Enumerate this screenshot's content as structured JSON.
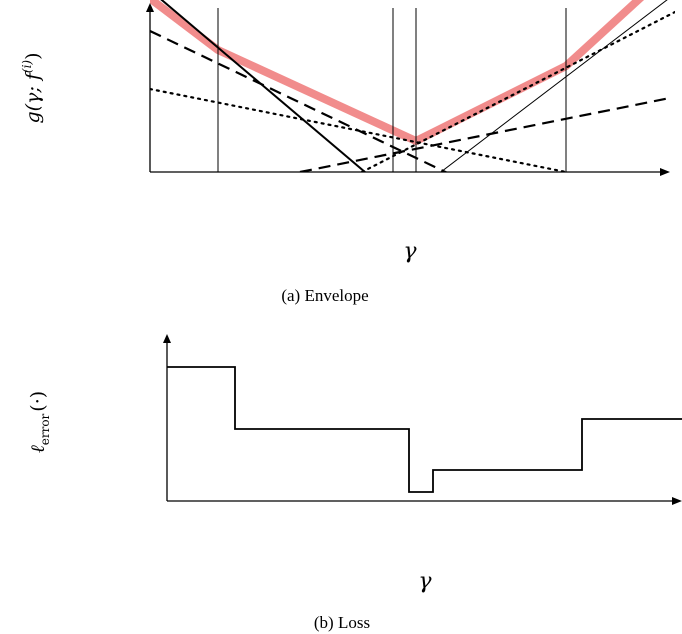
{
  "panel_a": {
    "caption": "(a) Envelope",
    "ylabel": "g(γ; f",
    "ylabel_sup": "(i)",
    "ylabel_close": ")",
    "xlabel": "γ",
    "highlight_color": "#f08080"
  },
  "panel_b": {
    "caption": "(b) Loss",
    "ylabel": "ℓ",
    "ylabel_sub": "error",
    "ylabel_tail": "(·)",
    "xlabel": "γ"
  }
}
